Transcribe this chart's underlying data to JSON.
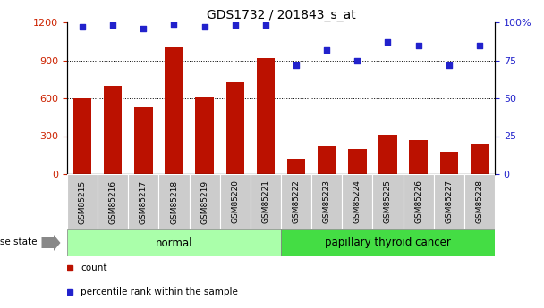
{
  "title": "GDS1732 / 201843_s_at",
  "samples": [
    "GSM85215",
    "GSM85216",
    "GSM85217",
    "GSM85218",
    "GSM85219",
    "GSM85220",
    "GSM85221",
    "GSM85222",
    "GSM85223",
    "GSM85224",
    "GSM85225",
    "GSM85226",
    "GSM85227",
    "GSM85228"
  ],
  "counts": [
    600,
    700,
    530,
    1000,
    610,
    730,
    920,
    120,
    220,
    200,
    310,
    270,
    175,
    240
  ],
  "percentiles": [
    97,
    98,
    96,
    99,
    97,
    98,
    98,
    72,
    82,
    75,
    87,
    85,
    72,
    85
  ],
  "groups": [
    "normal",
    "normal",
    "normal",
    "normal",
    "normal",
    "normal",
    "normal",
    "papillary thyroid cancer",
    "papillary thyroid cancer",
    "papillary thyroid cancer",
    "papillary thyroid cancer",
    "papillary thyroid cancer",
    "papillary thyroid cancer",
    "papillary thyroid cancer"
  ],
  "normal_color": "#AAFFAA",
  "cancer_color": "#44DD44",
  "bar_color": "#BB1100",
  "dot_color": "#2222CC",
  "left_ylim": [
    0,
    1200
  ],
  "left_yticks": [
    0,
    300,
    600,
    900,
    1200
  ],
  "right_ylim": [
    0,
    100
  ],
  "right_yticks": [
    0,
    25,
    50,
    75,
    100
  ],
  "right_yticklabels": [
    "0",
    "25",
    "50",
    "75",
    "100%"
  ],
  "tick_label_color_left": "#CC2200",
  "tick_label_color_right": "#2222CC",
  "legend_items": [
    {
      "label": "count",
      "color": "#BB1100"
    },
    {
      "label": "percentile rank within the sample",
      "color": "#2222CC"
    }
  ],
  "disease_state_label": "disease state",
  "figsize": [
    6.08,
    3.45
  ],
  "dpi": 100
}
